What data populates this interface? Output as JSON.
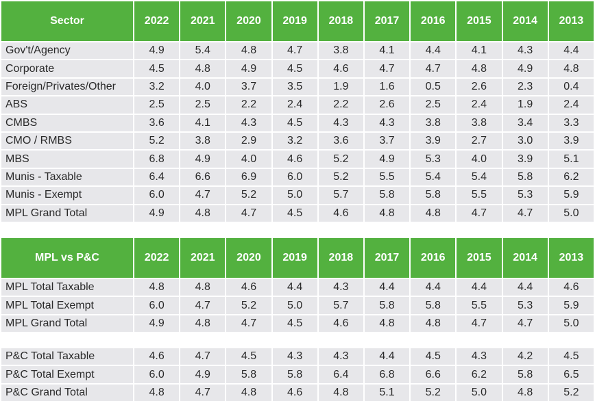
{
  "years": [
    "2022",
    "2021",
    "2020",
    "2019",
    "2018",
    "2017",
    "2016",
    "2015",
    "2014",
    "2013"
  ],
  "sector_table": {
    "header": "Sector",
    "rows": [
      {
        "label": "Gov't/Agency",
        "values": [
          "4.9",
          "5.4",
          "4.8",
          "4.7",
          "3.8",
          "4.1",
          "4.4",
          "4.1",
          "4.3",
          "4.4"
        ]
      },
      {
        "label": "Corporate",
        "values": [
          "4.5",
          "4.8",
          "4.9",
          "4.5",
          "4.6",
          "4.7",
          "4.7",
          "4.8",
          "4.9",
          "4.8"
        ]
      },
      {
        "label": "Foreign/Privates/Other",
        "values": [
          "3.2",
          "4.0",
          "3.7",
          "3.5",
          "1.9",
          "1.6",
          "0.5",
          "2.6",
          "2.3",
          "0.4"
        ]
      },
      {
        "label": "ABS",
        "values": [
          "2.5",
          "2.5",
          "2.2",
          "2.4",
          "2.2",
          "2.6",
          "2.5",
          "2.4",
          "1.9",
          "2.4"
        ]
      },
      {
        "label": "CMBS",
        "values": [
          "3.6",
          "4.1",
          "4.3",
          "4.5",
          "4.3",
          "4.3",
          "3.8",
          "3.8",
          "3.4",
          "3.3"
        ]
      },
      {
        "label": "CMO / RMBS",
        "values": [
          "5.2",
          "3.8",
          "2.9",
          "3.2",
          "3.6",
          "3.7",
          "3.9",
          "2.7",
          "3.0",
          "3.9"
        ]
      },
      {
        "label": "MBS",
        "values": [
          "6.8",
          "4.9",
          "4.0",
          "4.6",
          "5.2",
          "4.9",
          "5.3",
          "4.0",
          "3.9",
          "5.1"
        ]
      },
      {
        "label": "Munis - Taxable",
        "values": [
          "6.4",
          "6.6",
          "6.9",
          "6.0",
          "5.2",
          "5.5",
          "5.4",
          "5.4",
          "5.8",
          "6.2"
        ]
      },
      {
        "label": "Munis - Exempt",
        "values": [
          "6.0",
          "4.7",
          "5.2",
          "5.0",
          "5.7",
          "5.8",
          "5.8",
          "5.5",
          "5.3",
          "5.9"
        ]
      },
      {
        "label": "MPL Grand Total",
        "values": [
          "4.9",
          "4.8",
          "4.7",
          "4.5",
          "4.6",
          "4.8",
          "4.8",
          "4.7",
          "4.7",
          "5.0"
        ]
      }
    ]
  },
  "mpl_vs_pc_table": {
    "header": "MPL vs P&C",
    "mpl_rows": [
      {
        "label": "MPL Total Taxable",
        "values": [
          "4.8",
          "4.8",
          "4.6",
          "4.4",
          "4.3",
          "4.4",
          "4.4",
          "4.4",
          "4.4",
          "4.6"
        ]
      },
      {
        "label": "MPL Total Exempt",
        "values": [
          "6.0",
          "4.7",
          "5.2",
          "5.0",
          "5.7",
          "5.8",
          "5.8",
          "5.5",
          "5.3",
          "5.9"
        ]
      },
      {
        "label": "MPL Grand Total",
        "values": [
          "4.9",
          "4.8",
          "4.7",
          "4.5",
          "4.6",
          "4.8",
          "4.8",
          "4.7",
          "4.7",
          "5.0"
        ]
      }
    ],
    "pc_rows": [
      {
        "label": "P&C Total Taxable",
        "values": [
          "4.6",
          "4.7",
          "4.5",
          "4.3",
          "4.3",
          "4.4",
          "4.5",
          "4.3",
          "4.2",
          "4.5"
        ]
      },
      {
        "label": "P&C Total Exempt",
        "values": [
          "6.0",
          "4.9",
          "5.8",
          "5.8",
          "6.4",
          "6.8",
          "6.6",
          "6.2",
          "5.8",
          "6.5"
        ]
      },
      {
        "label": "P&C Grand Total",
        "values": [
          "4.8",
          "4.7",
          "4.8",
          "4.6",
          "4.8",
          "5.1",
          "5.2",
          "5.0",
          "4.8",
          "5.2"
        ]
      }
    ]
  },
  "colors": {
    "header_bg": "#53b13f",
    "header_text": "#ffffff",
    "cell_bg": "#e7e7ea",
    "cell_text": "#2a2a2a"
  }
}
